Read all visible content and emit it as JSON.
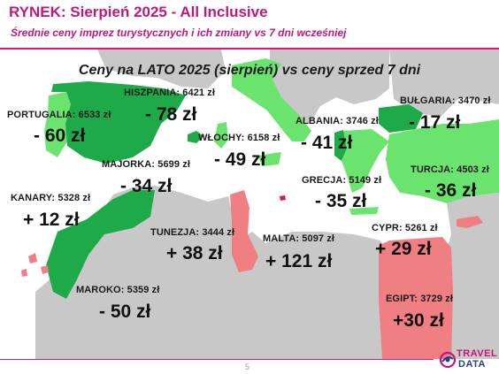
{
  "header": {
    "title": "RYNEK: Sierpień 2025 - All Inclusive",
    "subtitle": "Średnie ceny imprez turystycznych i ich zmiany vs 7 dni wcześniej"
  },
  "map": {
    "title": "Ceny na LATO 2025 (sierpień) vs ceny sprzed 7 dni",
    "colors": {
      "sea": "#ffffff",
      "land": "#c8c8c8",
      "decrease_dark": "#1faa4a",
      "decrease_light": "#6be36f",
      "increase": "#f07f83"
    },
    "destinations": [
      {
        "id": "portugalia",
        "label": "PORTUGALIA: 6533 zł",
        "change": "- 60 zł",
        "trend": "decrease"
      },
      {
        "id": "hiszpania",
        "label": "HISZPANIA: 6421 zł",
        "change": "- 78 zł",
        "trend": "decrease"
      },
      {
        "id": "majorka",
        "label": "MAJORKA: 5699 zł",
        "change": "- 34 zł",
        "trend": "decrease"
      },
      {
        "id": "kanary",
        "label": "KANARY: 5328 zł",
        "change": "+ 12 zł",
        "trend": "increase"
      },
      {
        "id": "maroko",
        "label": "MAROKO: 5359 zł",
        "change": "- 50 zł",
        "trend": "decrease"
      },
      {
        "id": "wlochy",
        "label": "WŁOCHY: 6158 zł",
        "change": "- 49 zł",
        "trend": "decrease"
      },
      {
        "id": "tunezja",
        "label": "TUNEZJA: 3444 zł",
        "change": "+ 38 zł",
        "trend": "increase"
      },
      {
        "id": "malta",
        "label": "MALTA: 5097 zł",
        "change": "+ 121 zł",
        "trend": "increase"
      },
      {
        "id": "albania",
        "label": "ALBANIA: 3746 zł",
        "change": "- 41 zł",
        "trend": "decrease"
      },
      {
        "id": "grecja",
        "label": "GRECJA: 5149 zł",
        "change": "- 35 zł",
        "trend": "decrease"
      },
      {
        "id": "bulgaria",
        "label": "BUŁGARIA: 3470 zł",
        "change": "- 17 zł",
        "trend": "decrease"
      },
      {
        "id": "turcja",
        "label": "TURCJA: 4503 zł",
        "change": "- 36 zł",
        "trend": "decrease"
      },
      {
        "id": "cypr",
        "label": "CYPR: 5261 zł",
        "change": "+ 29 zł",
        "trend": "increase"
      },
      {
        "id": "egipt",
        "label": "EGIPT: 3729 zł",
        "change": "+30 zł",
        "trend": "increase"
      }
    ]
  },
  "footer": {
    "page_number": "5",
    "logo_line1": "TRAVEL",
    "logo_line2": "DATA"
  }
}
